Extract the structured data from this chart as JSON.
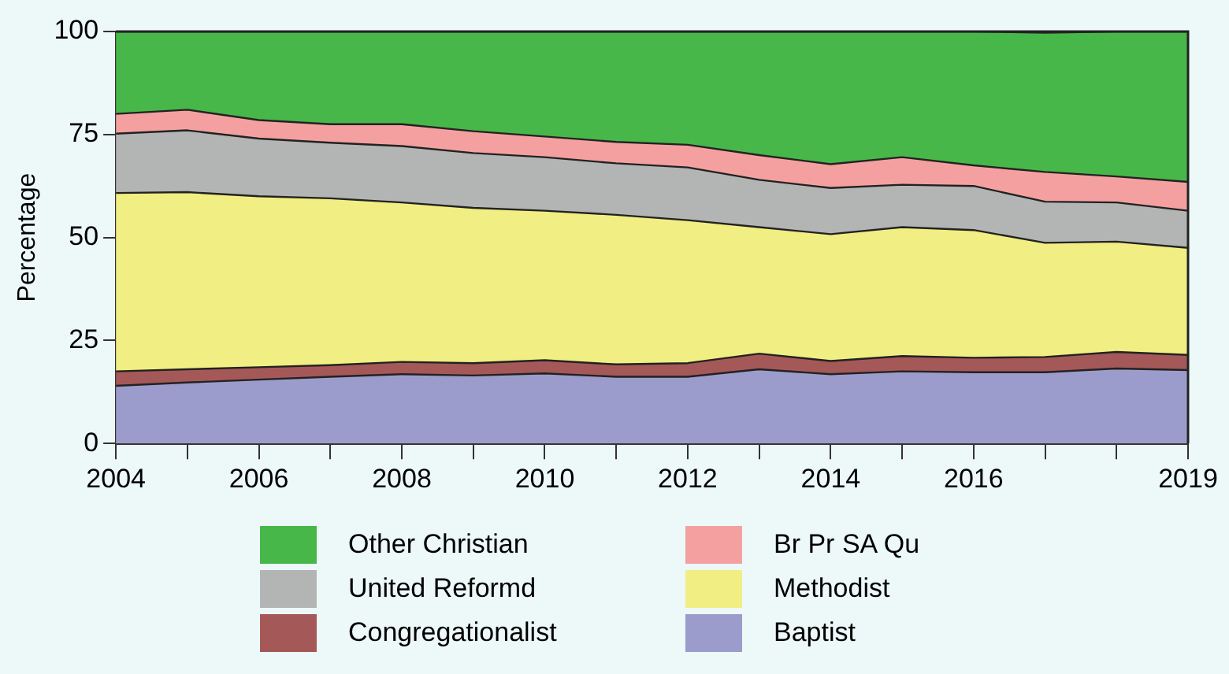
{
  "chart_data": {
    "type": "area",
    "stacked": true,
    "ylabel": "Percentage",
    "x": [
      2004,
      2005,
      2006,
      2007,
      2008,
      2009,
      2010,
      2011,
      2012,
      2013,
      2014,
      2015,
      2016,
      2017,
      2018,
      2019
    ],
    "xlim": [
      2004,
      2019
    ],
    "xticks": [
      2004,
      {
        "value": 2005,
        "label": null
      },
      2006,
      {
        "value": 2007,
        "label": null
      },
      2008,
      {
        "value": 2009,
        "label": null
      },
      2010,
      {
        "value": 2011,
        "label": null
      },
      2012,
      {
        "value": 2013,
        "label": null
      },
      2014,
      {
        "value": 2015,
        "label": null
      },
      2016,
      {
        "value": 2017,
        "label": null
      },
      {
        "value": 2018,
        "label": null
      },
      2019
    ],
    "ylim": [
      0,
      100
    ],
    "yticks": [
      0,
      25,
      50,
      75,
      100
    ],
    "legend": "bottom",
    "series": [
      {
        "name": "Baptist",
        "color": "#9c9ccc",
        "values": [
          14,
          14.8,
          15.5,
          16.2,
          16.8,
          16.5,
          17,
          16.2,
          16.2,
          18,
          16.8,
          17.5,
          17.3,
          17.3,
          18.2,
          17.8
        ]
      },
      {
        "name": "Congregationalist",
        "color": "#a55858",
        "values": [
          3.5,
          3.2,
          3,
          2.8,
          3,
          3,
          3.2,
          3,
          3.3,
          3.8,
          3.2,
          3.7,
          3.5,
          3.7,
          4,
          3.7
        ]
      },
      {
        "name": "Methodist",
        "color": "#f1ee83",
        "values": [
          43.3,
          43,
          41.5,
          40.5,
          38.7,
          37.7,
          36.3,
          36.3,
          34.7,
          30.7,
          30.8,
          31.3,
          31,
          27.7,
          26.8,
          26
        ]
      },
      {
        "name": "United Reformd",
        "color": "#b3b5b5",
        "values": [
          14.4,
          15,
          14,
          13.5,
          13.7,
          13.3,
          13,
          12.5,
          12.8,
          11.5,
          11.2,
          10.3,
          10.7,
          10,
          9.5,
          9
        ]
      },
      {
        "name": "Br Pr SA Qu",
        "color": "#f5a0a0",
        "values": [
          4.8,
          5,
          4.5,
          4.5,
          5.3,
          5.3,
          5,
          5.2,
          5.5,
          6,
          5.8,
          6.7,
          5,
          7.2,
          6.3,
          7
        ]
      },
      {
        "name": "Other Christian",
        "color": "#47b749",
        "values": [
          20,
          19,
          21.5,
          22.5,
          22.5,
          24.2,
          25.5,
          26.8,
          27.5,
          30,
          32.2,
          30.5,
          32.5,
          33.8,
          35.2,
          36.5
        ]
      }
    ]
  }
}
